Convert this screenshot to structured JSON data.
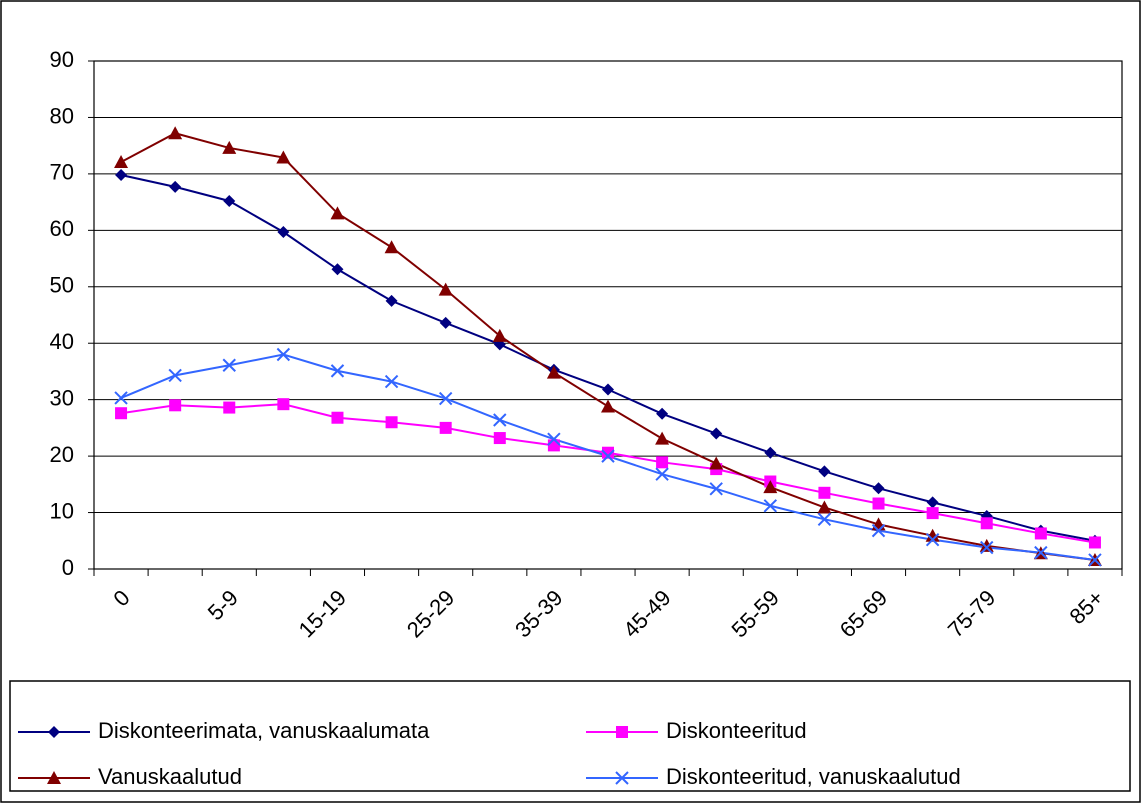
{
  "chart_data": {
    "type": "line",
    "categories": [
      "0",
      null,
      "5-9",
      null,
      "15-19",
      null,
      "25-29",
      null,
      "35-39",
      null,
      "45-49",
      null,
      "55-59",
      null,
      "65-69",
      null,
      "75-79",
      null,
      "85+"
    ],
    "series": [
      {
        "name": "Diskonteerimata, vanuskaalumata",
        "color": "#000080",
        "marker": "diamond",
        "values": [
          69.8,
          67.7,
          65.2,
          59.7,
          53.1,
          47.5,
          43.6,
          39.8,
          35.3,
          31.8,
          27.5,
          24.0,
          20.6,
          17.3,
          14.3,
          11.8,
          9.4,
          6.8,
          5.0
        ]
      },
      {
        "name": "Diskonteeritud",
        "color": "#ff00ff",
        "marker": "square",
        "values": [
          27.6,
          29.0,
          28.6,
          29.2,
          26.8,
          26.0,
          25.0,
          23.2,
          21.9,
          20.6,
          18.9,
          17.7,
          15.5,
          13.5,
          11.6,
          9.9,
          8.1,
          6.3,
          4.7
        ]
      },
      {
        "name": "Vanuskaalutud",
        "color": "#800000",
        "marker": "triangle",
        "values": [
          72.1,
          77.2,
          74.6,
          72.9,
          63.0,
          57.0,
          49.5,
          41.3,
          34.8,
          28.8,
          23.1,
          18.7,
          14.5,
          10.9,
          7.9,
          5.9,
          4.1,
          2.8,
          1.6
        ]
      },
      {
        "name": "Diskonteeritud, vanuskaalutud",
        "color": "#3366ff",
        "marker": "x",
        "values": [
          30.3,
          34.3,
          36.1,
          38.0,
          35.1,
          33.2,
          30.2,
          26.4,
          23.0,
          20.0,
          16.8,
          14.2,
          11.2,
          8.8,
          6.8,
          5.2,
          3.8,
          2.9,
          1.6
        ]
      }
    ],
    "ylim": [
      0,
      90
    ],
    "yticks": [
      0,
      10,
      20,
      30,
      40,
      50,
      60,
      70,
      80,
      90
    ],
    "grid": true,
    "legend_position": "bottom"
  }
}
